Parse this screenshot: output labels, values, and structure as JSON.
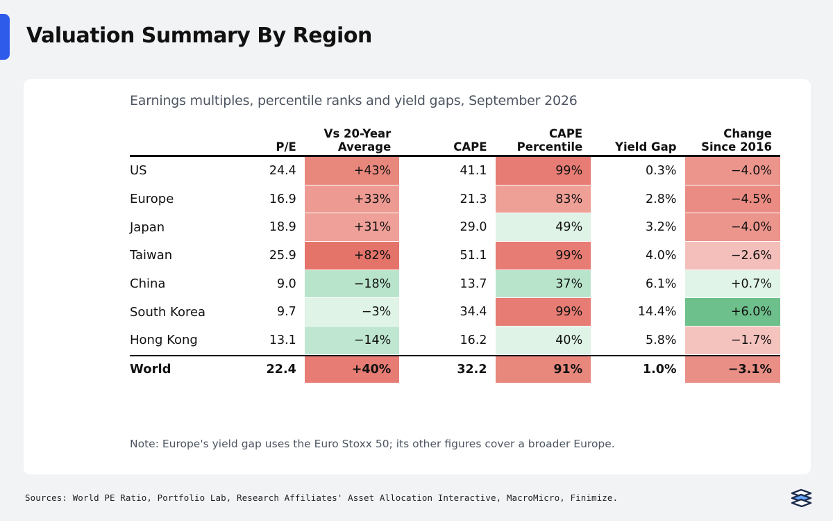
{
  "page": {
    "title": "Valuation Summary By Region",
    "subtitle": "Earnings multiples, percentile ranks and yield gaps, September 2026",
    "note": "Note: Europe's yield gap uses the Euro Stoxx 50; its other figures cover a broader Europe.",
    "sources": "Sources: World PE Ratio, Portfolio Lab, Research Affiliates' Asset Allocation Interactive, MacroMicro, Finimize.",
    "accent_color": "#2f5bea",
    "logo_icon": "finimize-logo-icon"
  },
  "chart_data": {
    "type": "table",
    "columns": [
      {
        "key": "region",
        "label": [
          "",
          ""
        ]
      },
      {
        "key": "pe",
        "label": [
          "",
          "P/E"
        ]
      },
      {
        "key": "vs20",
        "label": [
          "Vs 20-Year",
          "Average"
        ]
      },
      {
        "key": "cape",
        "label": [
          "",
          "CAPE"
        ]
      },
      {
        "key": "cape_pct",
        "label": [
          "CAPE",
          "Percentile"
        ]
      },
      {
        "key": "yield_gap",
        "label": [
          "",
          "Yield Gap"
        ]
      },
      {
        "key": "chg2016",
        "label": [
          "Change",
          "Since 2016"
        ]
      }
    ],
    "rows": [
      {
        "region": "US",
        "pe": "24.4",
        "vs20": "+43%",
        "cape": "41.1",
        "cape_pct": "99%",
        "yield_gap": "0.3%",
        "chg2016": "−4.0%"
      },
      {
        "region": "Europe",
        "pe": "16.9",
        "vs20": "+33%",
        "cape": "21.3",
        "cape_pct": "83%",
        "yield_gap": "2.8%",
        "chg2016": "−4.5%"
      },
      {
        "region": "Japan",
        "pe": "18.9",
        "vs20": "+31%",
        "cape": "29.0",
        "cape_pct": "49%",
        "yield_gap": "3.2%",
        "chg2016": "−4.0%"
      },
      {
        "region": "Taiwan",
        "pe": "25.9",
        "vs20": "+82%",
        "cape": "51.1",
        "cape_pct": "99%",
        "yield_gap": "4.0%",
        "chg2016": "−2.6%"
      },
      {
        "region": "China",
        "pe": "9.0",
        "vs20": "−18%",
        "cape": "13.7",
        "cape_pct": "37%",
        "yield_gap": "6.1%",
        "chg2016": "+0.7%"
      },
      {
        "region": "South Korea",
        "pe": "9.7",
        "vs20": "−3%",
        "cape": "34.4",
        "cape_pct": "99%",
        "yield_gap": "14.4%",
        "chg2016": "+6.0%"
      },
      {
        "region": "Hong Kong",
        "pe": "13.1",
        "vs20": "−14%",
        "cape": "16.2",
        "cape_pct": "40%",
        "yield_gap": "5.8%",
        "chg2016": "−1.7%"
      }
    ],
    "total": {
      "region": "World",
      "pe": "22.4",
      "vs20": "+40%",
      "cape": "32.2",
      "cape_pct": "91%",
      "yield_gap": "1.0%",
      "chg2016": "−3.1%"
    },
    "heat_colors": {
      "vs20": [
        "#e8877c",
        "#ed9b92",
        "#efa098",
        "#e4736a",
        "#b9e4cc",
        "#dff3e7",
        "#bfe6d0",
        "#e67c73"
      ],
      "cape_pct": [
        "#e67c73",
        "#ee9f96",
        "#dff3e7",
        "#e67c73",
        "#b9e4cc",
        "#e67c73",
        "#dff3e7",
        "#e8877c"
      ],
      "chg2016": [
        "#ec958c",
        "#ea8c83",
        "#ec958c",
        "#f4bfba",
        "#e1f4e8",
        "#6dbf8b",
        "#f5c3be",
        "#ea8f86"
      ]
    }
  }
}
